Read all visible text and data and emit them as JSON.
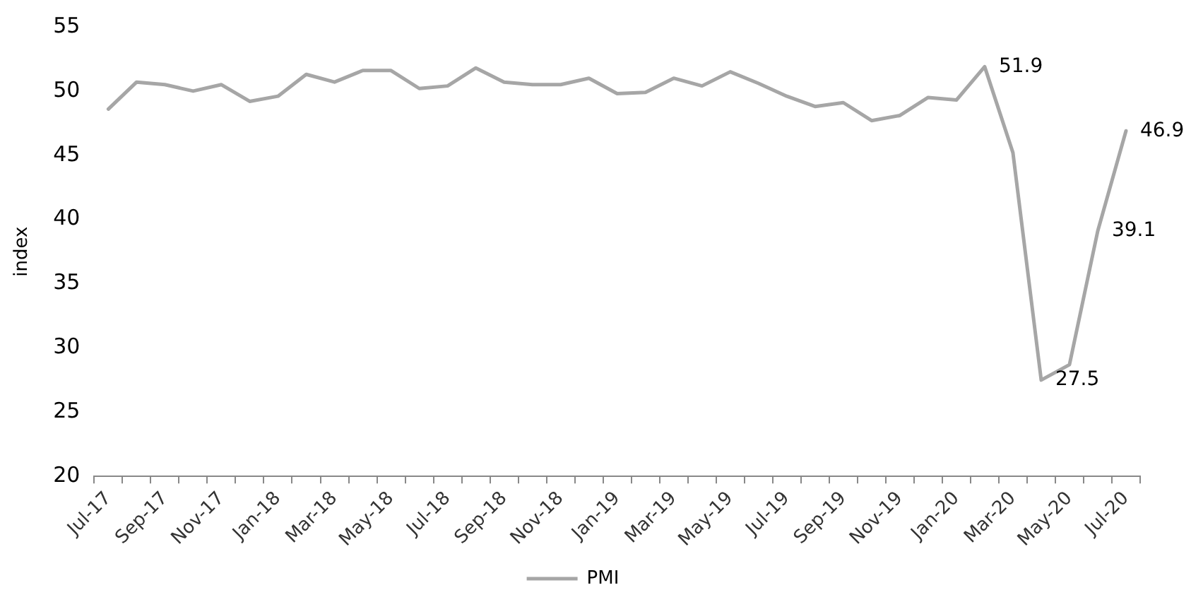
{
  "chart_data": {
    "type": "line",
    "ylabel": "index",
    "categories": [
      "Jul-17",
      null,
      "Sep-17",
      null,
      "Nov-17",
      null,
      "Jan-18",
      null,
      "Mar-18",
      null,
      "May-18",
      null,
      "Jul-18",
      null,
      "Sep-18",
      null,
      "Nov-18",
      null,
      "Jan-19",
      null,
      "Mar-19",
      null,
      "May-19",
      null,
      "Jul-19",
      null,
      "Sep-19",
      null,
      "Nov-19",
      null,
      "Jan-20",
      null,
      "Mar-20",
      null,
      "May-20",
      null,
      "Jul-20"
    ],
    "series": [
      {
        "name": "PMI",
        "color": "#a6a6a6",
        "values": [
          48.6,
          50.7,
          50.5,
          50.0,
          50.5,
          49.2,
          49.6,
          51.3,
          50.7,
          51.6,
          51.6,
          50.2,
          50.4,
          51.8,
          50.7,
          50.5,
          50.5,
          51.0,
          49.8,
          49.9,
          51.0,
          50.4,
          51.5,
          50.6,
          49.6,
          48.8,
          49.1,
          47.7,
          48.1,
          49.5,
          49.3,
          51.9,
          45.2,
          27.5,
          28.7,
          39.1,
          46.9
        ],
        "value_labels": [
          null,
          null,
          null,
          null,
          null,
          null,
          null,
          null,
          null,
          null,
          null,
          null,
          null,
          null,
          null,
          null,
          null,
          null,
          null,
          null,
          null,
          null,
          null,
          null,
          null,
          null,
          null,
          null,
          null,
          null,
          null,
          "51.9",
          null,
          "27.5",
          null,
          "39.1",
          "46.9"
        ]
      }
    ],
    "ylim": [
      20,
      55
    ],
    "yticks": [
      20,
      25,
      30,
      35,
      40,
      45,
      50,
      55
    ],
    "grid": false,
    "legend": "bottom",
    "marker": "none",
    "line_style": "solid"
  }
}
